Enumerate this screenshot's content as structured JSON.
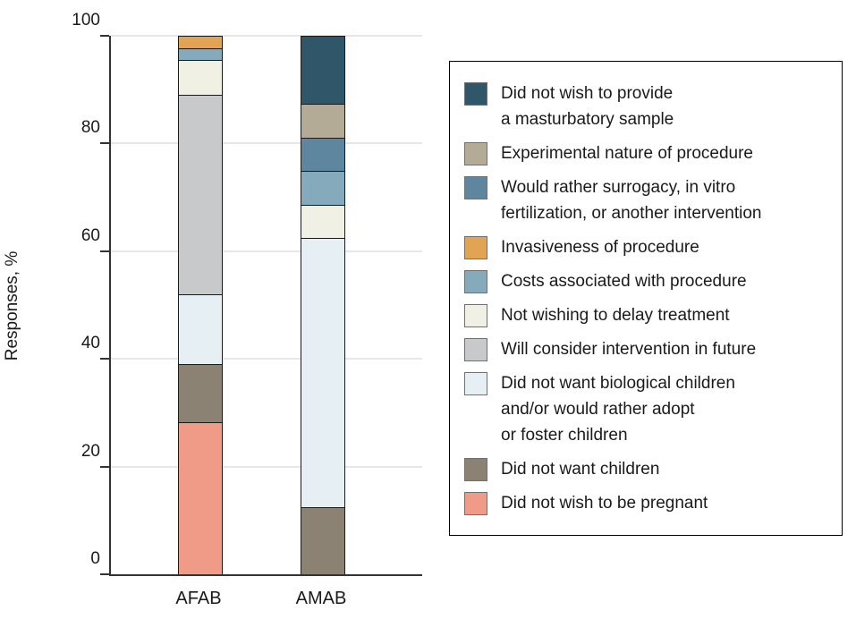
{
  "chart_data": {
    "type": "bar",
    "stacked": true,
    "title": "",
    "xlabel": "",
    "ylabel": "Responses, %",
    "ylim": [
      0,
      100
    ],
    "yticks": [
      0,
      20,
      40,
      60,
      80,
      100
    ],
    "grid": true,
    "legend_position": "right",
    "categories": [
      "AFAB",
      "AMAB"
    ],
    "series": [
      {
        "name": "Did not wish to be pregnant",
        "color": "#F09B87",
        "values": [
          28.3,
          0
        ]
      },
      {
        "name": "Did not want children",
        "color": "#8C8273",
        "values": [
          10.9,
          12.5
        ]
      },
      {
        "name": "Did not want biological children and/or would rather adopt or foster children",
        "color": "#E6EFF4",
        "values": [
          13.0,
          50.0
        ]
      },
      {
        "name": "Will consider intervention in future",
        "color": "#C8C9CB",
        "values": [
          37.0,
          0
        ]
      },
      {
        "name": "Not wishing to delay treatment",
        "color": "#F1F0E5",
        "values": [
          6.5,
          6.25
        ]
      },
      {
        "name": "Costs associated with procedure",
        "color": "#85AABC",
        "values": [
          2.2,
          6.25
        ]
      },
      {
        "name": "Invasiveness of procedure",
        "color": "#E2A454",
        "values": [
          2.2,
          0
        ]
      },
      {
        "name": "Would rather surrogacy, in vitro fertilization, or another intervention",
        "color": "#5F869F",
        "values": [
          0,
          6.25
        ]
      },
      {
        "name": "Experimental nature of procedure",
        "color": "#B4AB96",
        "values": [
          0,
          6.25
        ]
      },
      {
        "name": "Did not wish to provide a masturbatory sample",
        "color": "#2F5669",
        "values": [
          0,
          12.5
        ]
      }
    ]
  },
  "axes": {
    "y_title": "Responses, %",
    "x_labels": [
      "AFAB",
      "AMAB"
    ]
  },
  "legend": {
    "items": [
      {
        "color": "#2F5669",
        "lines": [
          "Did not wish to provide",
          "a masturbatory sample"
        ]
      },
      {
        "color": "#B4AB96",
        "lines": [
          "Experimental nature of procedure"
        ]
      },
      {
        "color": "#5F869F",
        "lines": [
          "Would rather surrogacy, in vitro",
          "fertilization, or another intervention"
        ]
      },
      {
        "color": "#E2A454",
        "lines": [
          "Invasiveness of procedure"
        ]
      },
      {
        "color": "#85AABC",
        "lines": [
          "Costs associated with procedure"
        ]
      },
      {
        "color": "#F1F0E5",
        "lines": [
          "Not wishing to delay treatment"
        ]
      },
      {
        "color": "#C8C9CB",
        "lines": [
          "Will consider intervention in future"
        ]
      },
      {
        "color": "#E6EFF4",
        "lines": [
          "Did not want biological children",
          "and/or would rather adopt",
          "or foster children"
        ]
      },
      {
        "color": "#8C8273",
        "lines": [
          "Did not want children"
        ]
      },
      {
        "color": "#F09B87",
        "lines": [
          "Did not wish to be pregnant"
        ]
      }
    ]
  },
  "colors": {
    "axis": "#333333",
    "gridline": "#e7e7e7",
    "segment_border": "#1a1a1a",
    "text": "#1a1a1a"
  }
}
